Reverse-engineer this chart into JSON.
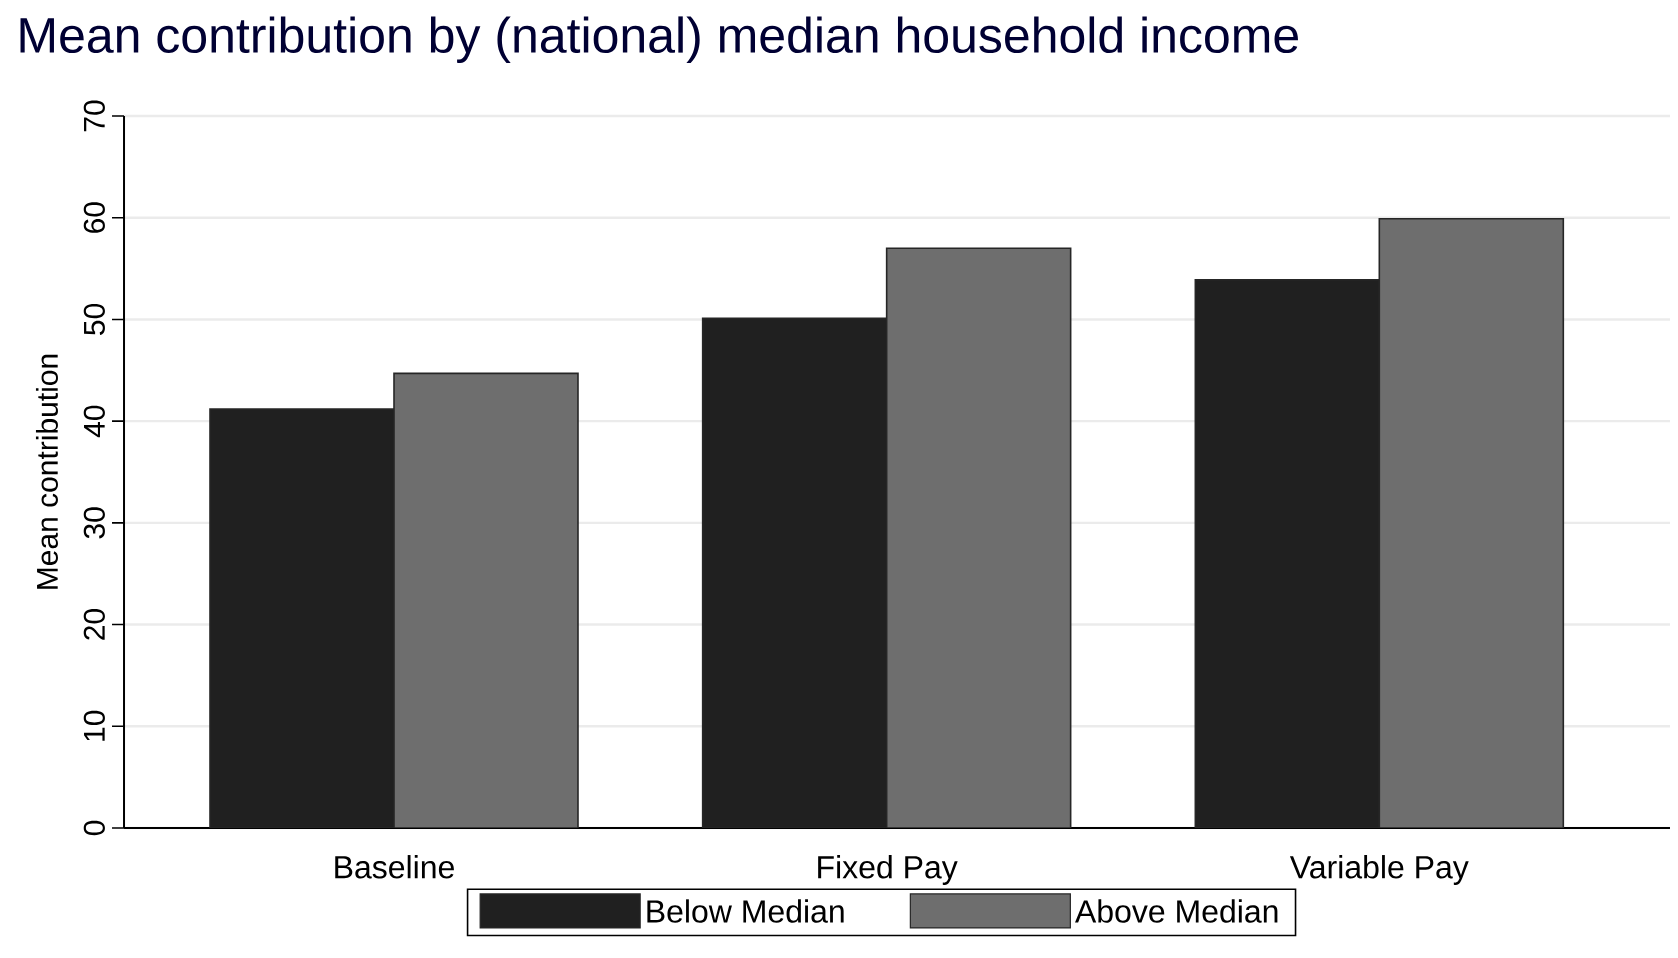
{
  "chart_data": {
    "type": "bar",
    "title": "Mean contribution by (national) median household income",
    "ylabel": "Mean contribution",
    "categories": [
      "Baseline",
      "Fixed Pay",
      "Variable Pay"
    ],
    "series": [
      {
        "name": "Below Median",
        "color": "#202020",
        "values": [
          41.2,
          50.1,
          53.9
        ]
      },
      {
        "name": "Above Median",
        "color": "#6e6e6e",
        "values": [
          44.7,
          57.0,
          59.9
        ]
      }
    ],
    "ylim": [
      0,
      70
    ],
    "yticks": [
      0,
      10,
      20,
      30,
      40,
      50,
      60,
      70
    ],
    "grid": "y",
    "legend": "bottom"
  }
}
